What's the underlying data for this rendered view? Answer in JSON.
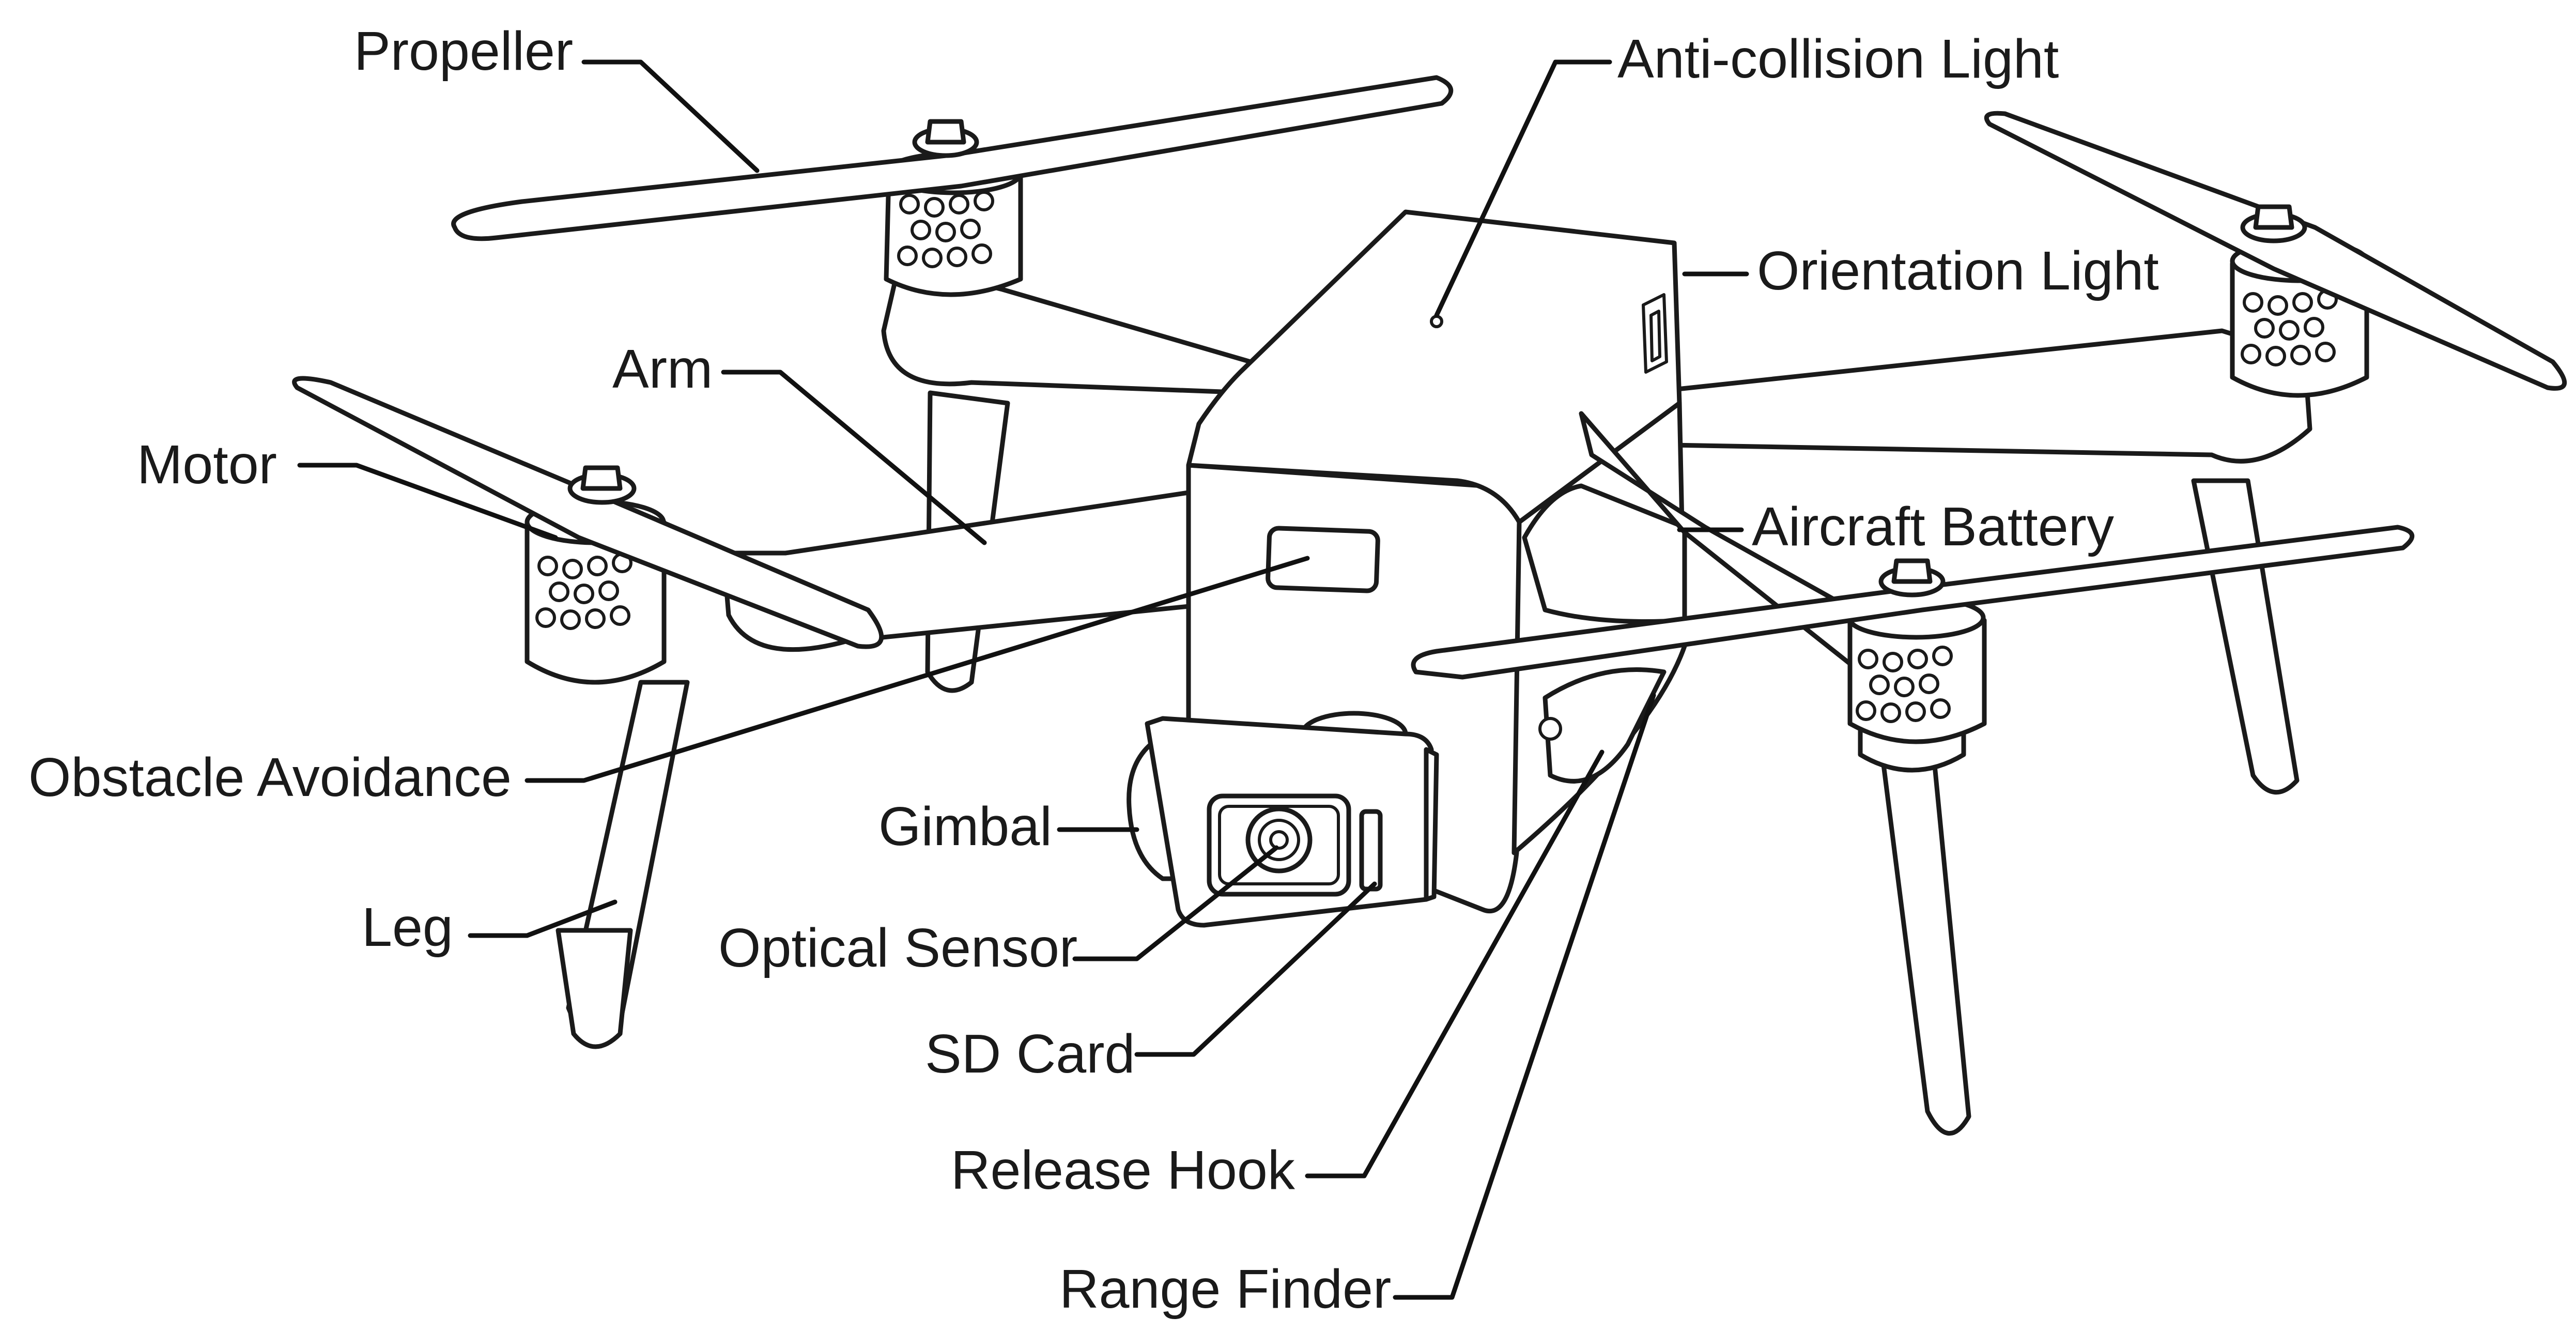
{
  "labels": {
    "propeller": "Propeller",
    "anti_collision_light": "Anti-collision Light",
    "orientation_light": "Orientation Light",
    "arm": "Arm",
    "motor": "Motor",
    "aircraft_battery": "Aircraft Battery",
    "obstacle_avoidance": "Obstacle Avoidance",
    "gimbal": "Gimbal",
    "leg": "Leg",
    "optical_sensor": "Optical Sensor",
    "sd_card": "SD Card",
    "release_hook": "Release Hook",
    "range_finder": "Range Finder"
  },
  "colors": {
    "ink": "#1a1a1a",
    "background": "#ffffff"
  }
}
